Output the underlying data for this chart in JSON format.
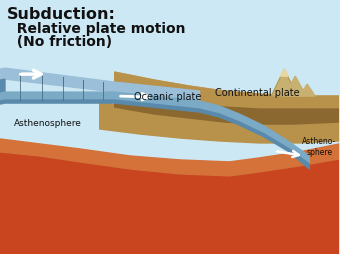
{
  "title_line1": "Subduction:",
  "title_line2": "  Relative plate motion",
  "title_line3": "  (No friction)",
  "label_oceanic": "Oceanic plate",
  "label_continental": "Continental plate",
  "label_asthenosphere_left": "Asthenosphere",
  "label_asthenosphere_right": "Astheno-\nsphere",
  "colors": {
    "sky": "#cce8f4",
    "ocean_top": "#9bbfd8",
    "ocean_mid": "#7aaac5",
    "ocean_dark": "#5a8aab",
    "ground_light": "#c8a96e",
    "ground_mid": "#b8914a",
    "ground_dark": "#8a6830",
    "mantle_red": "#c84520",
    "mantle_orange": "#d4723a",
    "mountain_tan": "#c8b070",
    "mountain_dark": "#a89050",
    "stripe": "#4a6878",
    "arrow": "#ffffff",
    "text": "#111111"
  },
  "figsize": [
    3.4,
    2.55
  ],
  "dpi": 100
}
